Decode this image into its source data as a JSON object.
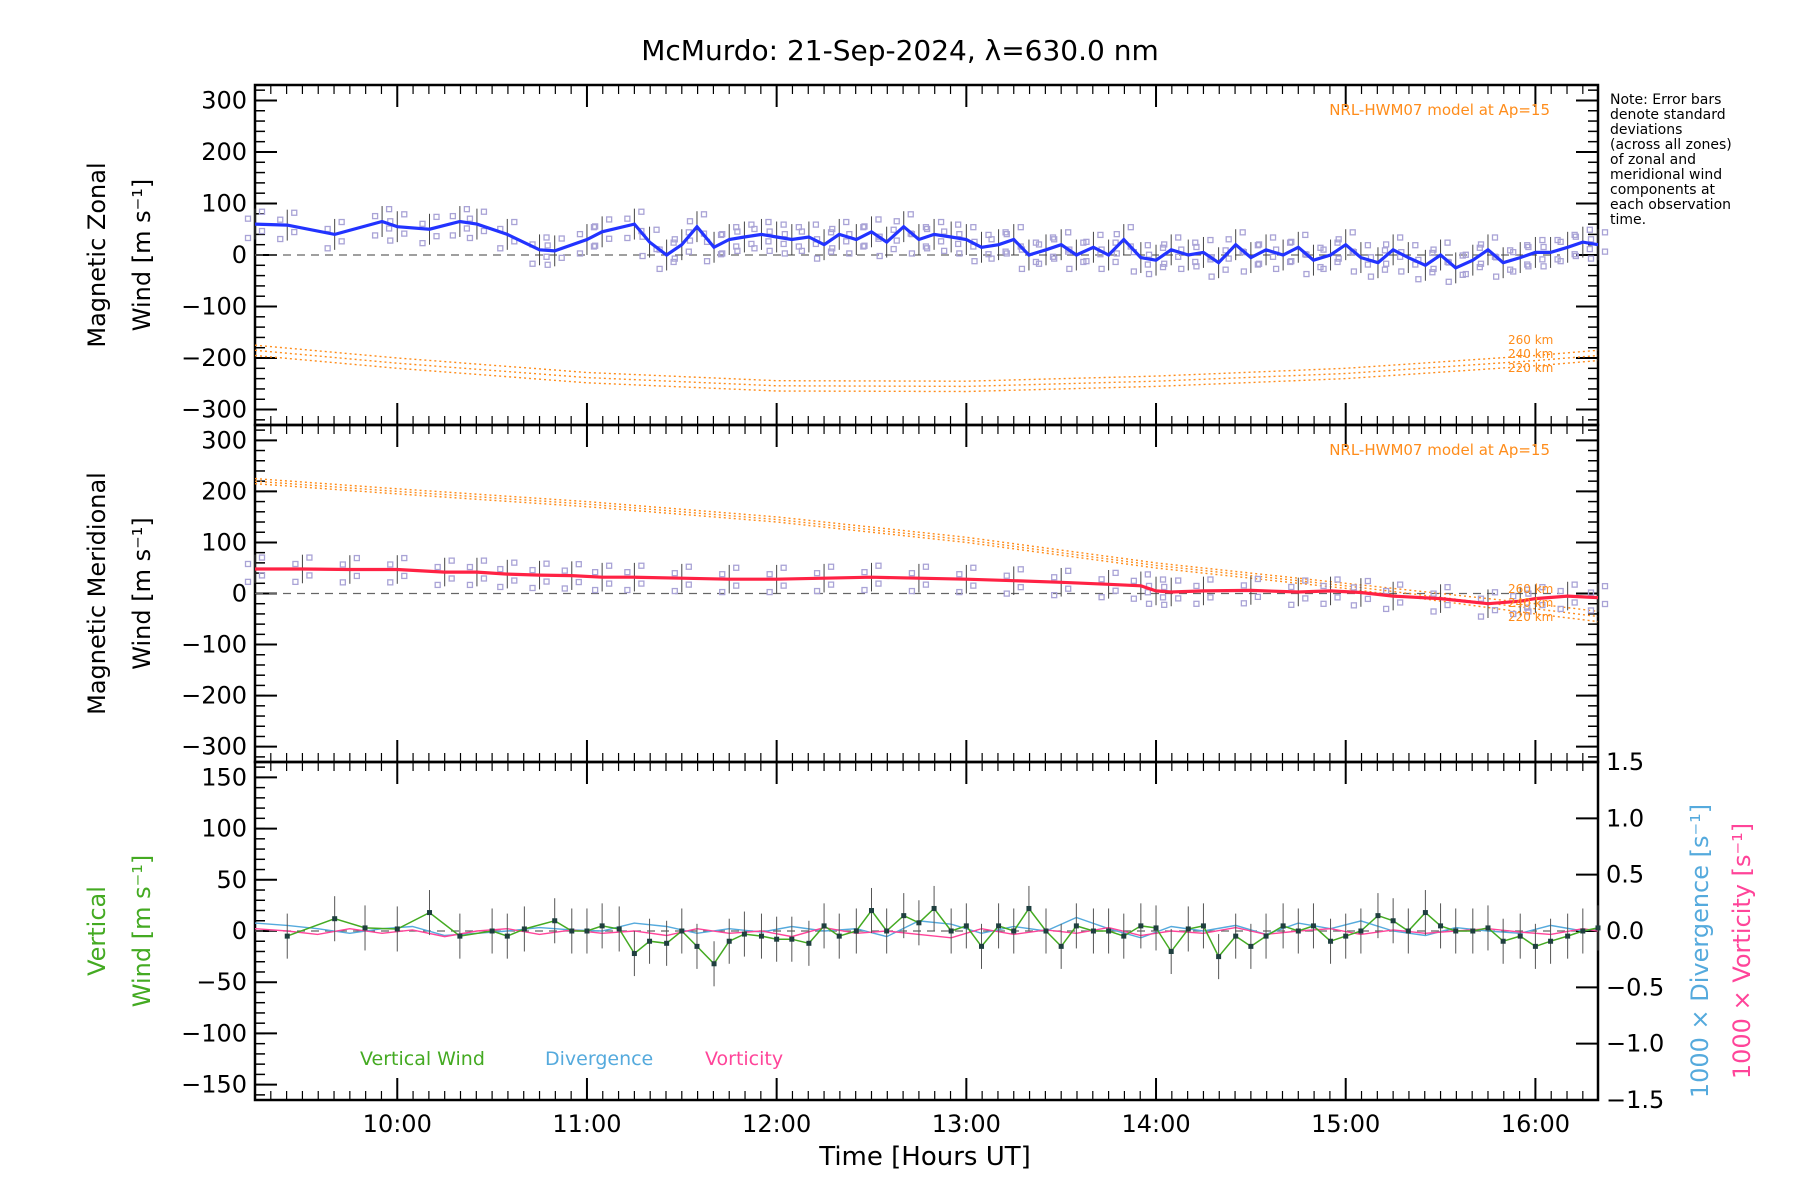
{
  "title": "McMurdo: 21-Sep-2024, λ=630.0 nm",
  "note_lines": [
    "Note: Error bars",
    "denote standard",
    "deviations",
    "(across all zones)",
    "of zonal and",
    "meridional wind",
    "components at",
    "each observation",
    "time."
  ],
  "colors": {
    "zonal": "#2233ff",
    "meridional": "#ff2244",
    "model": "#ff8c1a",
    "vertical": "#44aa22",
    "divergence": "#55aadd",
    "vorticity": "#ff4499",
    "zones": "#a9a3d6"
  },
  "chart_data": [
    {
      "type": "line",
      "panel": "zonal",
      "ylabel_lines": [
        "Magnetic Zonal",
        "Wind [m s⁻¹]"
      ],
      "ylim": [
        -330,
        330
      ],
      "yticks": [
        300,
        200,
        100,
        0,
        -100,
        -200,
        -300
      ],
      "ytick_labels": [
        "300",
        "200",
        "100",
        "0",
        "−100",
        "−200",
        "−300"
      ],
      "model_label": "NRL-HWM07 model at Ap=15",
      "model_alt_labels": [
        "260 km",
        "240 km",
        "220 km"
      ],
      "series": [
        {
          "name": "zonal",
          "x": [
            9.25,
            9.42,
            9.67,
            9.92,
            10.0,
            10.17,
            10.33,
            10.42,
            10.58,
            10.75,
            10.83,
            11.0,
            11.08,
            11.25,
            11.33,
            11.42,
            11.5,
            11.58,
            11.67,
            11.75,
            11.83,
            11.92,
            12.0,
            12.08,
            12.17,
            12.25,
            12.33,
            12.42,
            12.5,
            12.58,
            12.67,
            12.75,
            12.83,
            12.92,
            13.0,
            13.08,
            13.17,
            13.25,
            13.33,
            13.42,
            13.5,
            13.58,
            13.67,
            13.75,
            13.83,
            13.92,
            14.0,
            14.08,
            14.17,
            14.25,
            14.33,
            14.42,
            14.5,
            14.58,
            14.67,
            14.75,
            14.83,
            14.92,
            15.0,
            15.08,
            15.17,
            15.25,
            15.33,
            15.42,
            15.5,
            15.58,
            15.67,
            15.75,
            15.83,
            15.92,
            16.0,
            16.08,
            16.17,
            16.25,
            16.33
          ],
          "y": [
            60,
            58,
            40,
            65,
            55,
            50,
            65,
            60,
            40,
            10,
            8,
            30,
            45,
            60,
            25,
            0,
            20,
            55,
            15,
            30,
            35,
            40,
            35,
            30,
            35,
            20,
            40,
            30,
            45,
            25,
            55,
            30,
            40,
            35,
            30,
            15,
            20,
            30,
            0,
            10,
            20,
            0,
            15,
            0,
            30,
            -5,
            -10,
            10,
            0,
            5,
            -15,
            20,
            -5,
            10,
            0,
            15,
            -10,
            0,
            20,
            -5,
            -15,
            10,
            -5,
            -20,
            0,
            -25,
            -10,
            10,
            -15,
            -5,
            5,
            5,
            15,
            25,
            20
          ],
          "zone_spread": 30
        },
        {
          "name": "model 260 km",
          "x": [
            9.25,
            10.0,
            11.0,
            12.0,
            13.0,
            14.0,
            15.0,
            16.0,
            16.33
          ],
          "y": [
            -175,
            -200,
            -228,
            -244,
            -245,
            -235,
            -220,
            -195,
            -185
          ]
        },
        {
          "name": "model 240 km",
          "x": [
            9.25,
            10.0,
            11.0,
            12.0,
            13.0,
            14.0,
            15.0,
            16.0,
            16.33
          ],
          "y": [
            -185,
            -210,
            -238,
            -254,
            -255,
            -245,
            -230,
            -205,
            -195
          ]
        },
        {
          "name": "model 220 km",
          "x": [
            9.25,
            10.0,
            11.0,
            12.0,
            13.0,
            14.0,
            15.0,
            16.0,
            16.33
          ],
          "y": [
            -195,
            -220,
            -248,
            -264,
            -265,
            -255,
            -240,
            -215,
            -205
          ]
        }
      ]
    },
    {
      "type": "line",
      "panel": "meridional",
      "ylabel_lines": [
        "Magnetic Meridional",
        "Wind [m s⁻¹]"
      ],
      "ylim": [
        -330,
        330
      ],
      "yticks": [
        300,
        200,
        100,
        0,
        -100,
        -200,
        -300
      ],
      "ytick_labels": [
        "300",
        "200",
        "100",
        "0",
        "−100",
        "−200",
        "−300"
      ],
      "model_label": "NRL-HWM07 model at Ap=15",
      "model_alt_labels": [
        "260 km",
        "240 km",
        "220 km"
      ],
      "series": [
        {
          "name": "meridional",
          "x": [
            9.25,
            9.5,
            9.75,
            10.0,
            10.25,
            10.42,
            10.58,
            10.75,
            10.92,
            11.08,
            11.25,
            11.5,
            11.75,
            12.0,
            12.25,
            12.5,
            12.75,
            13.0,
            13.25,
            13.5,
            13.75,
            13.92,
            14.0,
            14.08,
            14.25,
            14.5,
            14.75,
            14.92,
            15.08,
            15.25,
            15.5,
            15.75,
            15.92,
            16.0,
            16.17,
            16.33
          ],
          "y": [
            48,
            48,
            47,
            47,
            42,
            42,
            38,
            36,
            35,
            32,
            32,
            30,
            28,
            28,
            30,
            32,
            30,
            28,
            25,
            22,
            18,
            15,
            5,
            3,
            5,
            6,
            3,
            5,
            2,
            -5,
            -10,
            -20,
            -15,
            -10,
            -5,
            -8
          ],
          "zone_spread": 28
        },
        {
          "name": "model 260 km",
          "x": [
            9.25,
            10.0,
            11.0,
            12.0,
            13.0,
            13.5,
            14.0,
            15.0,
            16.0,
            16.33
          ],
          "y": [
            225,
            205,
            180,
            150,
            110,
            85,
            60,
            20,
            -20,
            -35
          ]
        },
        {
          "name": "model 240 km",
          "x": [
            9.25,
            10.0,
            11.0,
            12.0,
            13.0,
            13.5,
            14.0,
            15.0,
            16.0,
            16.33
          ],
          "y": [
            220,
            200,
            175,
            145,
            105,
            80,
            55,
            15,
            -30,
            -45
          ]
        },
        {
          "name": "model 220 km",
          "x": [
            9.25,
            10.0,
            11.0,
            12.0,
            13.0,
            13.5,
            14.0,
            15.0,
            16.0,
            16.33
          ],
          "y": [
            215,
            195,
            170,
            140,
            100,
            75,
            50,
            10,
            -40,
            -55
          ]
        }
      ]
    },
    {
      "type": "line",
      "panel": "vertical",
      "ylabel_left_lines": [
        "Vertical",
        "Wind [m s⁻¹]"
      ],
      "ylabel_right_lines": [
        "1000 × Divergence [s⁻¹]",
        "1000 × Vorticity [s⁻¹]"
      ],
      "ylim": [
        -165,
        165
      ],
      "yticks": [
        150,
        100,
        50,
        0,
        -50,
        -100,
        -150
      ],
      "ytick_labels": [
        "150",
        "100",
        "50",
        "0",
        "−50",
        "−100",
        "−150"
      ],
      "y2lim": [
        -1.5,
        1.5
      ],
      "y2ticks": [
        1.5,
        1.0,
        0.5,
        0.0,
        -0.5,
        -1.0,
        -1.5
      ],
      "y2tick_labels": [
        "1.5",
        "1.0",
        "0.5",
        "0.0",
        "−0.5",
        "−1.0",
        "−1.5"
      ],
      "xlim": [
        9.25,
        16.33
      ],
      "xticks": [
        10,
        11,
        12,
        13,
        14,
        15,
        16
      ],
      "xtick_labels": [
        "10:00",
        "11:00",
        "12:00",
        "13:00",
        "14:00",
        "15:00",
        "16:00"
      ],
      "xlabel": "Time [Hours UT]",
      "legend": [
        "Vertical Wind",
        "Divergence",
        "Vorticity"
      ],
      "series": [
        {
          "name": "Vertical Wind",
          "x": [
            9.42,
            9.67,
            9.83,
            10.0,
            10.17,
            10.33,
            10.5,
            10.58,
            10.67,
            10.83,
            10.92,
            11.0,
            11.08,
            11.17,
            11.25,
            11.33,
            11.42,
            11.5,
            11.58,
            11.67,
            11.75,
            11.83,
            11.92,
            12.0,
            12.08,
            12.17,
            12.25,
            12.33,
            12.42,
            12.5,
            12.58,
            12.67,
            12.75,
            12.83,
            12.92,
            13.0,
            13.08,
            13.17,
            13.25,
            13.33,
            13.42,
            13.5,
            13.58,
            13.67,
            13.75,
            13.83,
            13.92,
            14.0,
            14.08,
            14.17,
            14.25,
            14.33,
            14.42,
            14.5,
            14.58,
            14.67,
            14.75,
            14.83,
            14.92,
            15.0,
            15.08,
            15.17,
            15.25,
            15.33,
            15.42,
            15.5,
            15.58,
            15.67,
            15.75,
            15.83,
            15.92,
            16.0,
            16.08,
            16.17,
            16.25,
            16.33
          ],
          "y": [
            -5,
            12,
            3,
            2,
            18,
            -5,
            0,
            -5,
            2,
            10,
            0,
            0,
            5,
            2,
            -22,
            -10,
            -12,
            0,
            -15,
            -32,
            -10,
            -3,
            -5,
            -8,
            -8,
            -12,
            5,
            -5,
            0,
            20,
            0,
            15,
            8,
            22,
            0,
            5,
            -15,
            5,
            0,
            22,
            0,
            -15,
            5,
            0,
            0,
            -5,
            5,
            3,
            -20,
            2,
            5,
            -25,
            -5,
            -15,
            -5,
            5,
            0,
            5,
            -10,
            -5,
            0,
            15,
            10,
            0,
            18,
            5,
            0,
            0,
            3,
            -10,
            -5,
            -15,
            -10,
            -5,
            0,
            3
          ]
        },
        {
          "name": "Divergence",
          "x": [
            9.25,
            9.42,
            9.58,
            9.75,
            9.92,
            10.08,
            10.25,
            10.42,
            10.58,
            10.75,
            10.92,
            11.08,
            11.25,
            11.42,
            11.58,
            11.75,
            11.92,
            12.08,
            12.25,
            12.42,
            12.58,
            12.75,
            12.92,
            13.08,
            13.25,
            13.42,
            13.58,
            13.75,
            13.92,
            14.08,
            14.25,
            14.42,
            14.58,
            14.75,
            14.92,
            15.08,
            15.25,
            15.42,
            15.58,
            15.75,
            15.92,
            16.08,
            16.25,
            16.33
          ],
          "y": [
            0.07,
            0.05,
            0.02,
            -0.02,
            0.02,
            0.04,
            -0.04,
            -0.02,
            0.0,
            0.03,
            0.01,
            0.0,
            0.07,
            0.04,
            -0.02,
            0.02,
            -0.01,
            0.04,
            0.0,
            0.02,
            -0.05,
            0.09,
            0.06,
            -0.02,
            0.04,
            0.0,
            0.12,
            0.02,
            -0.06,
            0.04,
            0.0,
            0.05,
            -0.03,
            0.07,
            0.02,
            0.09,
            0.0,
            -0.04,
            0.03,
            0.0,
            -0.02,
            0.05,
            0.0,
            0.02
          ]
        },
        {
          "name": "Vorticity",
          "x": [
            9.25,
            9.42,
            9.58,
            9.75,
            9.92,
            10.08,
            10.25,
            10.42,
            10.58,
            10.75,
            10.92,
            11.08,
            11.25,
            11.42,
            11.58,
            11.75,
            11.92,
            12.08,
            12.25,
            12.42,
            12.58,
            12.75,
            12.92,
            13.08,
            13.25,
            13.42,
            13.58,
            13.75,
            13.92,
            14.08,
            14.25,
            14.42,
            14.58,
            14.75,
            14.92,
            15.08,
            15.25,
            15.42,
            15.58,
            15.75,
            15.92,
            16.08,
            16.25,
            16.33
          ],
          "y": [
            0.02,
            0.0,
            -0.03,
            0.02,
            -0.02,
            0.01,
            -0.05,
            0.0,
            0.02,
            -0.03,
            0.01,
            -0.02,
            0.0,
            -0.04,
            0.02,
            -0.02,
            0.0,
            -0.05,
            0.03,
            -0.02,
            0.0,
            -0.03,
            -0.06,
            0.02,
            -0.03,
            0.01,
            -0.02,
            0.03,
            -0.04,
            0.0,
            -0.02,
            0.03,
            -0.03,
            0.0,
            0.02,
            -0.03,
            0.01,
            -0.02,
            0.0,
            0.02,
            -0.01,
            -0.03,
            0.02,
            0.0
          ]
        }
      ]
    }
  ]
}
